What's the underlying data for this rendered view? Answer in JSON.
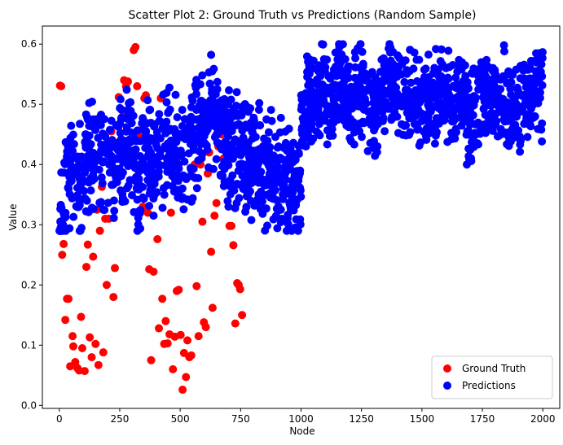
{
  "chart_data": {
    "type": "scatter",
    "title": "Scatter Plot 2: Ground Truth vs Predictions (Random Sample)",
    "xlabel": "Node",
    "ylabel": "Value",
    "xlim": [
      -70,
      2070
    ],
    "ylim": [
      -0.005,
      0.63
    ],
    "xticks": [
      0,
      250,
      500,
      750,
      1000,
      1250,
      1500,
      1750,
      2000
    ],
    "yticks": [
      0.0,
      0.1,
      0.2,
      0.3,
      0.4,
      0.5,
      0.6
    ],
    "grid": false,
    "legend": {
      "placement": "lower-right"
    },
    "series": [
      {
        "name": "Ground Truth",
        "color": "#ff0000",
        "points": [
          [
            3,
            0.531
          ],
          [
            8,
            0.53
          ],
          [
            12,
            0.25
          ],
          [
            18,
            0.268
          ],
          [
            25,
            0.142
          ],
          [
            32,
            0.177
          ],
          [
            38,
            0.177
          ],
          [
            45,
            0.065
          ],
          [
            55,
            0.115
          ],
          [
            58,
            0.098
          ],
          [
            66,
            0.072
          ],
          [
            75,
            0.062
          ],
          [
            82,
            0.058
          ],
          [
            90,
            0.147
          ],
          [
            95,
            0.095
          ],
          [
            105,
            0.057
          ],
          [
            112,
            0.23
          ],
          [
            118,
            0.267
          ],
          [
            126,
            0.113
          ],
          [
            134,
            0.08
          ],
          [
            140,
            0.247
          ],
          [
            150,
            0.102
          ],
          [
            156,
            0.325
          ],
          [
            162,
            0.067
          ],
          [
            168,
            0.29
          ],
          [
            176,
            0.363
          ],
          [
            182,
            0.088
          ],
          [
            190,
            0.31
          ],
          [
            196,
            0.2
          ],
          [
            205,
            0.31
          ],
          [
            215,
            0.455
          ],
          [
            224,
            0.18
          ],
          [
            230,
            0.228
          ],
          [
            238,
            0.436
          ],
          [
            246,
            0.512
          ],
          [
            256,
            0.42
          ],
          [
            262,
            0.48
          ],
          [
            268,
            0.54
          ],
          [
            276,
            0.53
          ],
          [
            284,
            0.538
          ],
          [
            292,
            0.42
          ],
          [
            300,
            0.41
          ],
          [
            308,
            0.59
          ],
          [
            315,
            0.595
          ],
          [
            322,
            0.53
          ],
          [
            330,
            0.44
          ],
          [
            338,
            0.45
          ],
          [
            346,
            0.33
          ],
          [
            352,
            0.51
          ],
          [
            358,
            0.515
          ],
          [
            366,
            0.32
          ],
          [
            372,
            0.226
          ],
          [
            380,
            0.075
          ],
          [
            390,
            0.222
          ],
          [
            398,
            0.44
          ],
          [
            406,
            0.276
          ],
          [
            412,
            0.128
          ],
          [
            420,
            0.51
          ],
          [
            426,
            0.177
          ],
          [
            434,
            0.102
          ],
          [
            440,
            0.14
          ],
          [
            448,
            0.103
          ],
          [
            456,
            0.118
          ],
          [
            462,
            0.32
          ],
          [
            470,
            0.06
          ],
          [
            478,
            0.114
          ],
          [
            486,
            0.19
          ],
          [
            494,
            0.192
          ],
          [
            502,
            0.117
          ],
          [
            510,
            0.026
          ],
          [
            516,
            0.087
          ],
          [
            524,
            0.047
          ],
          [
            530,
            0.108
          ],
          [
            538,
            0.08
          ],
          [
            546,
            0.083
          ],
          [
            552,
            0.38
          ],
          [
            560,
            0.4
          ],
          [
            568,
            0.198
          ],
          [
            576,
            0.115
          ],
          [
            584,
            0.4
          ],
          [
            592,
            0.305
          ],
          [
            598,
            0.138
          ],
          [
            606,
            0.13
          ],
          [
            614,
            0.385
          ],
          [
            620,
            0.42
          ],
          [
            628,
            0.255
          ],
          [
            634,
            0.162
          ],
          [
            642,
            0.315
          ],
          [
            650,
            0.336
          ],
          [
            658,
            0.43
          ],
          [
            664,
            0.43
          ],
          [
            672,
            0.45
          ],
          [
            680,
            0.41
          ],
          [
            688,
            0.465
          ],
          [
            696,
            0.47
          ],
          [
            704,
            0.298
          ],
          [
            712,
            0.298
          ],
          [
            720,
            0.266
          ],
          [
            728,
            0.136
          ],
          [
            736,
            0.203
          ],
          [
            742,
            0.2
          ],
          [
            748,
            0.193
          ],
          [
            756,
            0.15
          ]
        ]
      },
      {
        "name": "Predictions",
        "color": "#0000ff",
        "segments": [
          {
            "x0": 0,
            "x1": 1000,
            "knots": [
              [
                0,
                0.31
              ],
              [
                30,
                0.36
              ],
              [
                60,
                0.4
              ],
              [
                90,
                0.37
              ],
              [
                120,
                0.42
              ],
              [
                150,
                0.38
              ],
              [
                180,
                0.43
              ],
              [
                210,
                0.4
              ],
              [
                240,
                0.39
              ],
              [
                270,
                0.44
              ],
              [
                300,
                0.41
              ],
              [
                330,
                0.38
              ],
              [
                360,
                0.43
              ],
              [
                390,
                0.4
              ],
              [
                420,
                0.42
              ],
              [
                450,
                0.44
              ],
              [
                480,
                0.41
              ],
              [
                510,
                0.43
              ],
              [
                540,
                0.42
              ],
              [
                570,
                0.45
              ],
              [
                600,
                0.48
              ],
              [
                630,
                0.5
              ],
              [
                660,
                0.46
              ],
              [
                690,
                0.43
              ],
              [
                720,
                0.41
              ],
              [
                750,
                0.44
              ],
              [
                780,
                0.4
              ],
              [
                810,
                0.42
              ],
              [
                840,
                0.39
              ],
              [
                870,
                0.4
              ],
              [
                900,
                0.37
              ],
              [
                930,
                0.38
              ],
              [
                960,
                0.36
              ],
              [
                1000,
                0.35
              ]
            ],
            "spread": 0.11,
            "ymin": 0.29,
            "ymax": 0.6
          },
          {
            "x0": 1000,
            "x1": 2000,
            "knots": [
              [
                1000,
                0.46
              ],
              [
                1030,
                0.52
              ],
              [
                1060,
                0.5
              ],
              [
                1090,
                0.53
              ],
              [
                1120,
                0.5
              ],
              [
                1150,
                0.54
              ],
              [
                1180,
                0.52
              ],
              [
                1210,
                0.49
              ],
              [
                1240,
                0.53
              ],
              [
                1270,
                0.5
              ],
              [
                1300,
                0.48
              ],
              [
                1330,
                0.51
              ],
              [
                1360,
                0.54
              ],
              [
                1390,
                0.53
              ],
              [
                1420,
                0.5
              ],
              [
                1450,
                0.52
              ],
              [
                1480,
                0.5
              ],
              [
                1510,
                0.51
              ],
              [
                1540,
                0.5
              ],
              [
                1570,
                0.52
              ],
              [
                1600,
                0.51
              ],
              [
                1630,
                0.5
              ],
              [
                1660,
                0.52
              ],
              [
                1690,
                0.47
              ],
              [
                1720,
                0.49
              ],
              [
                1750,
                0.51
              ],
              [
                1780,
                0.53
              ],
              [
                1810,
                0.5
              ],
              [
                1840,
                0.52
              ],
              [
                1870,
                0.49
              ],
              [
                1900,
                0.5
              ],
              [
                1930,
                0.52
              ],
              [
                1960,
                0.51
              ],
              [
                2000,
                0.52
              ]
            ],
            "spread": 0.09,
            "ymin": 0.4,
            "ymax": 0.6
          }
        ],
        "count": 1900
      }
    ]
  }
}
